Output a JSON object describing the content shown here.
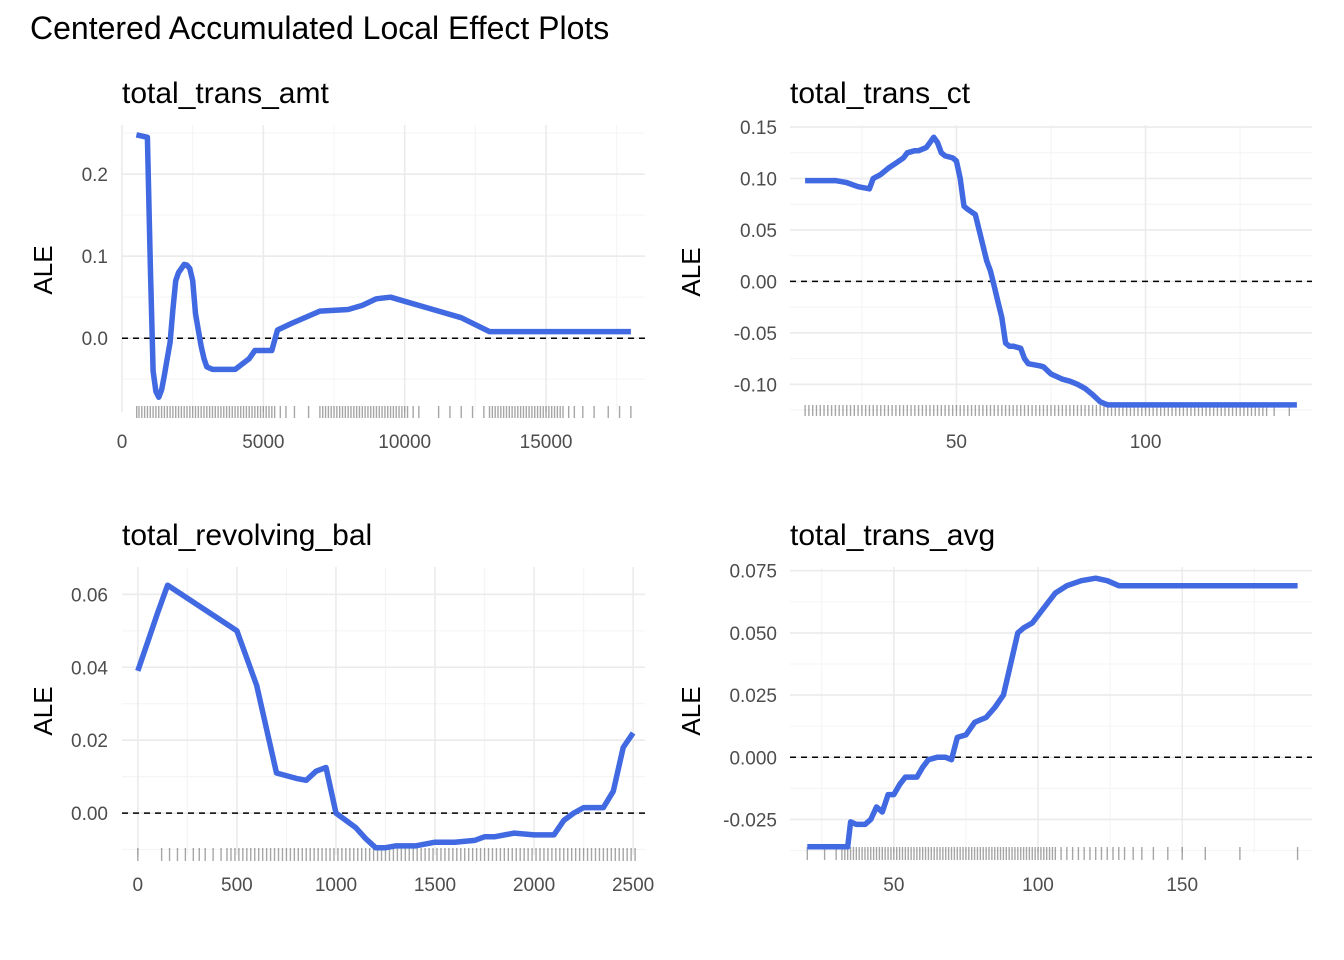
{
  "title": "Centered Accumulated Local Effect Plots",
  "colors": {
    "line": "#4169E1",
    "grid_major": "#ebebeb",
    "grid_minor": "#f5f5f5",
    "rug": "#000000",
    "zero_line": "#000000"
  },
  "chart_data": [
    {
      "type": "line",
      "title": "total_trans_amt",
      "xlabel": "",
      "ylabel": "ALE",
      "xlim": [
        0,
        18500
      ],
      "ylim": [
        -0.09,
        0.26
      ],
      "xticks": [
        0,
        5000,
        10000,
        15000
      ],
      "xtick_labels": [
        "0",
        "5000",
        "10000",
        "15000"
      ],
      "yticks": [
        0.0,
        0.1,
        0.2
      ],
      "ytick_labels": [
        "0.0",
        "0.1",
        "0.2"
      ],
      "reference_line_y": 0,
      "x": [
        510,
        900,
        1000,
        1100,
        1200,
        1300,
        1400,
        1500,
        1600,
        1700,
        1800,
        1900,
        2000,
        2100,
        2200,
        2300,
        2400,
        2500,
        2600,
        2700,
        2800,
        2900,
        3000,
        3200,
        3500,
        4000,
        4500,
        4700,
        4900,
        5300,
        5500,
        6000,
        7000,
        8000,
        8500,
        9000,
        9500,
        10000,
        11000,
        12000,
        13000,
        14000,
        15000,
        16000,
        17000,
        18000
      ],
      "y": [
        0.248,
        0.245,
        0.09,
        -0.04,
        -0.065,
        -0.072,
        -0.063,
        -0.045,
        -0.025,
        -0.005,
        0.035,
        0.07,
        0.08,
        0.085,
        0.09,
        0.089,
        0.085,
        0.07,
        0.03,
        0.01,
        -0.01,
        -0.025,
        -0.035,
        -0.038,
        -0.038,
        -0.038,
        -0.025,
        -0.015,
        -0.015,
        -0.015,
        0.01,
        0.018,
        0.033,
        0.035,
        0.04,
        0.048,
        0.05,
        0.045,
        0.035,
        0.025,
        0.008,
        0.008,
        0.008,
        0.008,
        0.008,
        0.008
      ],
      "rug": [
        520,
        600,
        700,
        800,
        900,
        1000,
        1100,
        1200,
        1300,
        1400,
        1500,
        1600,
        1700,
        1800,
        1900,
        2000,
        2100,
        2200,
        2300,
        2400,
        2500,
        2600,
        2700,
        2800,
        2900,
        3000,
        3100,
        3200,
        3300,
        3400,
        3500,
        3600,
        3700,
        3800,
        3900,
        4000,
        4100,
        4200,
        4300,
        4400,
        4500,
        4600,
        4700,
        4800,
        4900,
        5000,
        5100,
        5200,
        5300,
        5400,
        5600,
        5800,
        6100,
        6600,
        7000,
        7100,
        7200,
        7300,
        7400,
        7500,
        7600,
        7700,
        7800,
        7900,
        8000,
        8100,
        8200,
        8300,
        8400,
        8500,
        8600,
        8700,
        8800,
        8900,
        9000,
        9100,
        9200,
        9300,
        9400,
        9500,
        9600,
        9700,
        9800,
        9900,
        10000,
        10100,
        10300,
        10500,
        11200,
        11600,
        12000,
        12400,
        12800,
        13000,
        13100,
        13200,
        13300,
        13400,
        13500,
        13600,
        13700,
        13800,
        13900,
        14000,
        14100,
        14200,
        14300,
        14400,
        14500,
        14600,
        14700,
        14800,
        14900,
        15000,
        15100,
        15200,
        15300,
        15400,
        15500,
        15600,
        15800,
        16000,
        16300,
        16700,
        17200,
        17600,
        18000
      ]
    },
    {
      "type": "line",
      "title": "total_trans_ct",
      "xlabel": "",
      "ylabel": "ALE",
      "xlim": [
        6,
        144
      ],
      "ylim": [
        -0.125,
        0.152
      ],
      "xticks": [
        50,
        100
      ],
      "xtick_labels": [
        "50",
        "100"
      ],
      "yticks": [
        -0.1,
        -0.05,
        0.0,
        0.05,
        0.1,
        0.15
      ],
      "ytick_labels": [
        "-0.10",
        "-0.05",
        "0.00",
        "0.05",
        "0.10",
        "0.15"
      ],
      "reference_line_y": 0,
      "x": [
        10,
        18,
        21,
        24,
        27,
        28,
        30,
        32,
        34,
        36,
        37,
        39,
        40,
        42,
        43,
        44,
        45,
        46,
        47,
        49,
        50,
        51,
        52,
        53,
        55,
        56,
        58,
        59,
        60,
        61,
        62,
        63,
        64,
        65,
        67,
        68,
        69,
        72,
        73,
        75,
        78,
        79,
        80,
        82,
        84,
        86,
        88,
        90,
        93,
        95,
        100,
        110,
        120,
        130,
        140
      ],
      "y": [
        0.098,
        0.098,
        0.096,
        0.092,
        0.09,
        0.1,
        0.104,
        0.11,
        0.115,
        0.12,
        0.125,
        0.127,
        0.127,
        0.13,
        0.135,
        0.14,
        0.135,
        0.125,
        0.122,
        0.12,
        0.117,
        0.1,
        0.073,
        0.07,
        0.065,
        0.05,
        0.02,
        0.01,
        -0.005,
        -0.02,
        -0.035,
        -0.06,
        -0.063,
        -0.063,
        -0.065,
        -0.075,
        -0.08,
        -0.082,
        -0.083,
        -0.09,
        -0.095,
        -0.096,
        -0.097,
        -0.1,
        -0.104,
        -0.11,
        -0.117,
        -0.12,
        -0.12,
        -0.12,
        -0.12,
        -0.12,
        -0.12,
        -0.12,
        -0.12
      ],
      "rug": [
        10,
        11,
        12,
        13,
        14,
        15,
        16,
        17,
        18,
        19,
        20,
        21,
        22,
        23,
        24,
        25,
        26,
        27,
        28,
        29,
        30,
        31,
        32,
        33,
        34,
        35,
        36,
        37,
        38,
        39,
        40,
        41,
        42,
        43,
        44,
        45,
        46,
        47,
        48,
        49,
        50,
        51,
        52,
        53,
        54,
        55,
        56,
        57,
        58,
        59,
        60,
        61,
        62,
        63,
        64,
        65,
        66,
        67,
        68,
        69,
        70,
        71,
        72,
        73,
        74,
        75,
        76,
        77,
        78,
        79,
        80,
        81,
        82,
        83,
        84,
        85,
        86,
        87,
        88,
        89,
        90,
        91,
        92,
        93,
        94,
        95,
        96,
        97,
        98,
        99,
        100,
        101,
        102,
        103,
        104,
        105,
        106,
        107,
        108,
        109,
        110,
        111,
        112,
        113,
        114,
        115,
        116,
        117,
        118,
        119,
        120,
        121,
        122,
        123,
        124,
        125,
        126,
        127,
        128,
        129,
        130,
        131,
        132,
        134,
        138
      ]
    },
    {
      "type": "line",
      "title": "total_revolving_bal",
      "xlabel": "",
      "ylabel": "ALE",
      "xlim": [
        -80,
        2560
      ],
      "ylim": [
        -0.0115,
        0.0675
      ],
      "xticks": [
        0,
        500,
        1000,
        1500,
        2000,
        2500
      ],
      "xtick_labels": [
        "0",
        "500",
        "1000",
        "1500",
        "2000",
        "2500"
      ],
      "yticks": [
        0.0,
        0.02,
        0.04,
        0.06
      ],
      "ytick_labels": [
        "0.00",
        "0.02",
        "0.04",
        "0.06"
      ],
      "reference_line_y": 0,
      "x": [
        0,
        50,
        100,
        150,
        500,
        600,
        700,
        800,
        850,
        900,
        950,
        1000,
        1050,
        1100,
        1150,
        1200,
        1250,
        1300,
        1400,
        1500,
        1600,
        1700,
        1750,
        1800,
        1900,
        2000,
        2050,
        2100,
        2150,
        2200,
        2250,
        2300,
        2350,
        2400,
        2450,
        2500
      ],
      "y": [
        0.039,
        0.047,
        0.055,
        0.0625,
        0.05,
        0.035,
        0.011,
        0.0095,
        0.009,
        0.0115,
        0.0125,
        0.0,
        -0.002,
        -0.004,
        -0.007,
        -0.0095,
        -0.0095,
        -0.009,
        -0.009,
        -0.008,
        -0.008,
        -0.0075,
        -0.0065,
        -0.0065,
        -0.0055,
        -0.006,
        -0.006,
        -0.006,
        -0.002,
        0.0,
        0.0015,
        0.0015,
        0.0015,
        0.006,
        0.018,
        0.022
      ],
      "rug": [
        0,
        120,
        160,
        200,
        240,
        280,
        310,
        340,
        380,
        420,
        450,
        470,
        490,
        510,
        530,
        550,
        570,
        590,
        610,
        630,
        650,
        670,
        690,
        710,
        730,
        750,
        770,
        790,
        810,
        830,
        850,
        870,
        890,
        910,
        930,
        950,
        970,
        990,
        1010,
        1030,
        1050,
        1070,
        1090,
        1110,
        1130,
        1150,
        1170,
        1190,
        1210,
        1230,
        1250,
        1270,
        1290,
        1310,
        1330,
        1350,
        1370,
        1390,
        1410,
        1430,
        1450,
        1470,
        1490,
        1510,
        1530,
        1550,
        1570,
        1590,
        1610,
        1630,
        1650,
        1670,
        1690,
        1710,
        1730,
        1750,
        1770,
        1790,
        1810,
        1830,
        1850,
        1870,
        1890,
        1910,
        1930,
        1950,
        1970,
        1990,
        2010,
        2030,
        2050,
        2070,
        2090,
        2110,
        2130,
        2150,
        2170,
        2190,
        2210,
        2230,
        2250,
        2270,
        2290,
        2310,
        2330,
        2350,
        2370,
        2390,
        2410,
        2430,
        2450,
        2470,
        2490,
        2510
      ]
    },
    {
      "type": "line",
      "title": "total_trans_avg",
      "xlabel": "",
      "ylabel": "ALE",
      "xlim": [
        14,
        195
      ],
      "ylim": [
        -0.0385,
        0.0765
      ],
      "xticks": [
        50,
        100,
        150
      ],
      "xtick_labels": [
        "50",
        "100",
        "150"
      ],
      "yticks": [
        -0.025,
        0.0,
        0.025,
        0.05,
        0.075
      ],
      "ytick_labels": [
        "-0.025",
        "0.000",
        "0.025",
        "0.050",
        "0.075"
      ],
      "reference_line_y": 0,
      "x": [
        20,
        25,
        30,
        34,
        35,
        37,
        40,
        42,
        44,
        46,
        48,
        50,
        52,
        54,
        56,
        58,
        60,
        62,
        65,
        68,
        70,
        72,
        75,
        78,
        80,
        82,
        85,
        88,
        90,
        93,
        95,
        98,
        102,
        106,
        110,
        115,
        120,
        124,
        128,
        132,
        136,
        140,
        150,
        160,
        170,
        180,
        190
      ],
      "y": [
        -0.036,
        -0.036,
        -0.036,
        -0.036,
        -0.026,
        -0.027,
        -0.027,
        -0.025,
        -0.02,
        -0.022,
        -0.015,
        -0.015,
        -0.011,
        -0.008,
        -0.008,
        -0.008,
        -0.004,
        -0.001,
        0.0,
        0.0,
        -0.001,
        0.008,
        0.009,
        0.014,
        0.015,
        0.016,
        0.02,
        0.025,
        0.035,
        0.05,
        0.052,
        0.054,
        0.06,
        0.066,
        0.069,
        0.071,
        0.072,
        0.071,
        0.069,
        0.069,
        0.069,
        0.069,
        0.069,
        0.069,
        0.069,
        0.069,
        0.069
      ],
      "rug": [
        20,
        26,
        30,
        32,
        33,
        34,
        35,
        36,
        37,
        38,
        39,
        40,
        41,
        42,
        43,
        44,
        45,
        46,
        47,
        48,
        49,
        50,
        51,
        52,
        53,
        54,
        55,
        56,
        57,
        58,
        59,
        60,
        61,
        62,
        63,
        64,
        65,
        66,
        67,
        68,
        69,
        70,
        71,
        72,
        73,
        74,
        75,
        76,
        77,
        78,
        79,
        80,
        81,
        82,
        83,
        84,
        85,
        86,
        87,
        88,
        89,
        90,
        91,
        92,
        93,
        94,
        95,
        96,
        97,
        98,
        99,
        100,
        101,
        102,
        103,
        104,
        105,
        106,
        108,
        110,
        112,
        114,
        116,
        118,
        120,
        122,
        124,
        126,
        128,
        130,
        133,
        136,
        140,
        145,
        150,
        158,
        170,
        190
      ]
    }
  ]
}
